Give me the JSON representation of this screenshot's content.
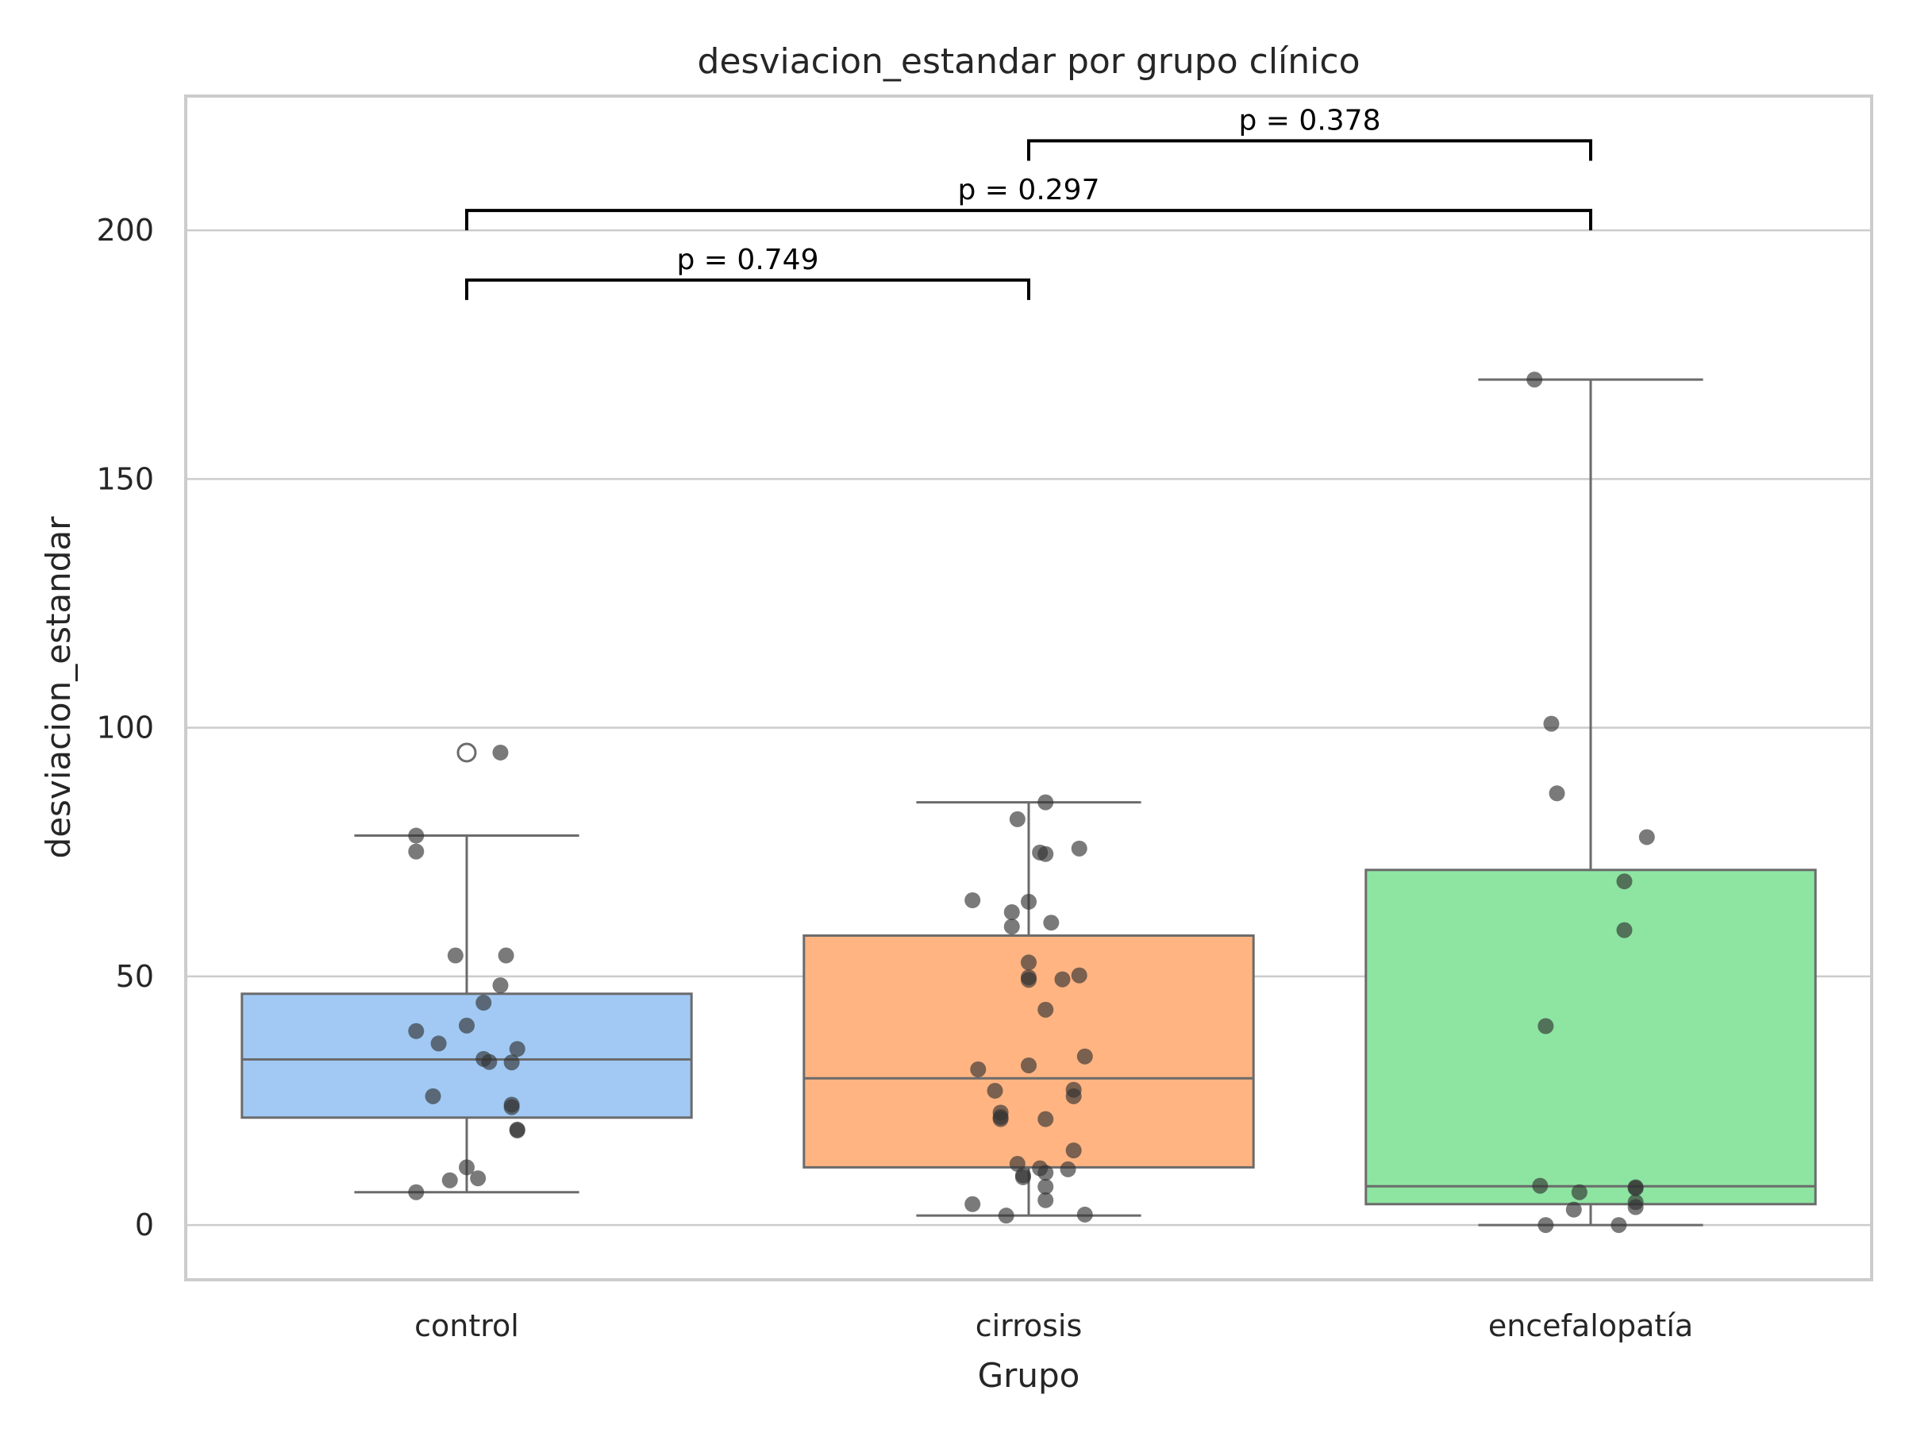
{
  "chart_data": {
    "type": "box",
    "title": "desviacion_estandar por grupo clínico",
    "xlabel": "Grupo",
    "ylabel": "desviacion_estandar",
    "ylim": [
      -11,
      227
    ],
    "yticks": [
      0,
      50,
      100,
      150,
      200
    ],
    "grid": "horizontal",
    "categories": [
      "control",
      "cirrosis",
      "encefalopatía"
    ],
    "colors": {
      "control": "#a1c9f4",
      "cirrosis": "#ffb482",
      "encefalopatía": "#8de5a1",
      "box_edge": "#6b6b6b",
      "points": "#333333",
      "annotation": "#000000",
      "grid": "#cccccc"
    },
    "boxes": [
      {
        "group": "control",
        "whisker_low": 6.6,
        "q1": 21.6,
        "median": 33.3,
        "q3": 46.5,
        "whisker_high": 78.3,
        "outliers": [
          95.0
        ],
        "points": [
          [
            -0.09,
            78.3
          ],
          [
            -0.09,
            75.1
          ],
          [
            0.06,
            95.0
          ],
          [
            -0.02,
            54.2
          ],
          [
            0.07,
            54.2
          ],
          [
            0.06,
            48.2
          ],
          [
            0.03,
            44.7
          ],
          [
            -0.09,
            39.0
          ],
          [
            0.0,
            40.1
          ],
          [
            -0.05,
            36.5
          ],
          [
            0.09,
            35.4
          ],
          [
            0.03,
            33.4
          ],
          [
            0.04,
            32.8
          ],
          [
            0.08,
            32.7
          ],
          [
            -0.06,
            25.9
          ],
          [
            0.08,
            24.2
          ],
          [
            0.08,
            23.7
          ],
          [
            0.09,
            19.2
          ],
          [
            0.09,
            19.0
          ],
          [
            0.0,
            11.6
          ],
          [
            0.02,
            9.4
          ],
          [
            -0.03,
            9.0
          ],
          [
            -0.09,
            6.6
          ]
        ]
      },
      {
        "group": "cirrosis",
        "whisker_low": 1.9,
        "q1": 11.6,
        "median": 29.5,
        "q3": 58.2,
        "whisker_high": 85.0,
        "outliers": [],
        "points": [
          [
            0.03,
            85.0
          ],
          [
            -0.02,
            81.6
          ],
          [
            0.09,
            75.7
          ],
          [
            0.02,
            74.9
          ],
          [
            0.03,
            74.6
          ],
          [
            -0.1,
            65.3
          ],
          [
            0.0,
            65.0
          ],
          [
            -0.03,
            62.9
          ],
          [
            0.04,
            60.8
          ],
          [
            -0.03,
            60.0
          ],
          [
            0.0,
            52.8
          ],
          [
            0.09,
            50.2
          ],
          [
            0.0,
            49.8
          ],
          [
            0.06,
            49.4
          ],
          [
            0.0,
            49.3
          ],
          [
            0.03,
            43.3
          ],
          [
            0.1,
            33.9
          ],
          [
            0.0,
            32.1
          ],
          [
            -0.09,
            31.3
          ],
          [
            0.08,
            27.2
          ],
          [
            -0.06,
            27.0
          ],
          [
            0.08,
            25.9
          ],
          [
            -0.05,
            22.6
          ],
          [
            -0.05,
            21.7
          ],
          [
            -0.05,
            21.3
          ],
          [
            0.03,
            21.3
          ],
          [
            0.08,
            15.0
          ],
          [
            -0.02,
            12.3
          ],
          [
            0.02,
            11.4
          ],
          [
            0.07,
            11.2
          ],
          [
            0.03,
            10.5
          ],
          [
            -0.01,
            10.0
          ],
          [
            -0.01,
            9.6
          ],
          [
            0.03,
            7.7
          ],
          [
            0.03,
            5.0
          ],
          [
            -0.1,
            4.2
          ],
          [
            0.1,
            2.1
          ],
          [
            -0.04,
            1.9
          ]
        ]
      },
      {
        "group": "encefalopatía",
        "whisker_low": 0.0,
        "q1": 4.2,
        "median": 7.8,
        "q3": 71.4,
        "whisker_high": 170.0,
        "outliers": [],
        "points": [
          [
            -0.1,
            170.0
          ],
          [
            -0.07,
            100.8
          ],
          [
            -0.06,
            86.8
          ],
          [
            0.1,
            78.0
          ],
          [
            0.06,
            69.1
          ],
          [
            0.06,
            59.3
          ],
          [
            -0.08,
            40.0
          ],
          [
            -0.09,
            7.9
          ],
          [
            0.08,
            7.6
          ],
          [
            0.08,
            7.4
          ],
          [
            -0.02,
            6.6
          ],
          [
            0.08,
            4.6
          ],
          [
            0.08,
            3.6
          ],
          [
            -0.03,
            3.1
          ],
          [
            -0.08,
            0.0
          ],
          [
            0.05,
            0.0
          ]
        ]
      }
    ],
    "annotations": [
      {
        "from": "control",
        "to": "cirrosis",
        "y": 190,
        "tick_len": 4,
        "label": "p = 0.749"
      },
      {
        "from": "control",
        "to": "encefalopatía",
        "y": 204,
        "tick_len": 4,
        "label": "p = 0.297"
      },
      {
        "from": "cirrosis",
        "to": "encefalopatía",
        "y": 218,
        "tick_len": 4,
        "label": "p = 0.378"
      }
    ]
  }
}
